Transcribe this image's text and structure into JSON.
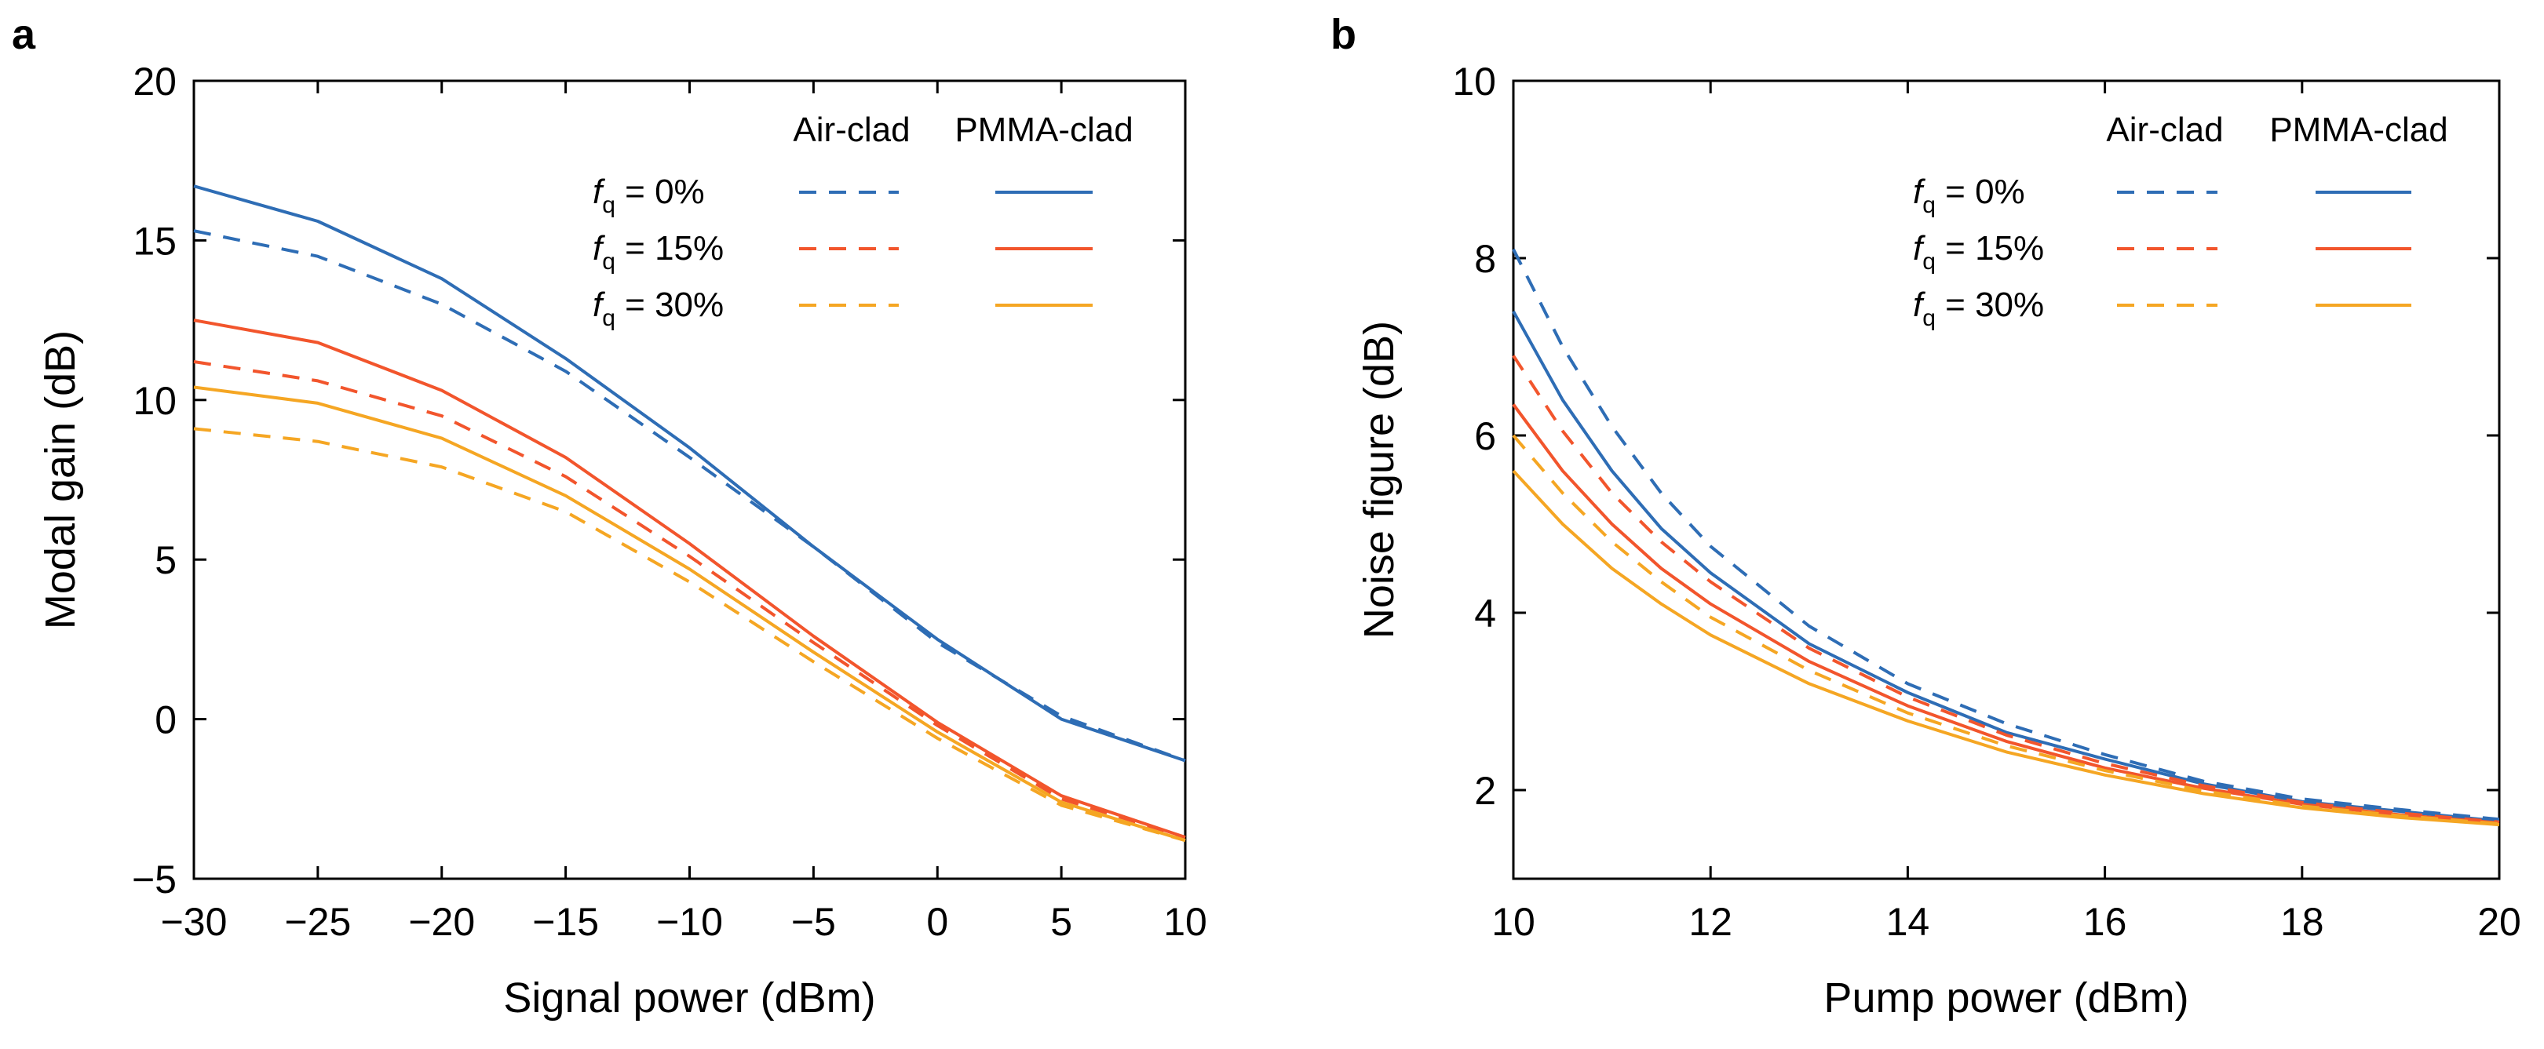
{
  "colors": {
    "fq0": "#2e6db5",
    "fq15": "#f2552c",
    "fq30": "#f5a623",
    "axis": "#000000"
  },
  "chart_data": [
    {
      "panel": "a",
      "type": "line",
      "xlabel": "Signal power (dBm)",
      "ylabel": "Modal gain (dB)",
      "xlim": [
        -30,
        10
      ],
      "ylim": [
        -5,
        20
      ],
      "xticks": [
        -30,
        -25,
        -20,
        -15,
        -10,
        -5,
        0,
        5,
        10
      ],
      "yticks": [
        -5,
        0,
        5,
        10,
        15,
        20
      ],
      "xtick_labels": [
        "−30",
        "−25",
        "−20",
        "−15",
        "−10",
        "−5",
        "0",
        "5",
        "10"
      ],
      "ytick_labels": [
        "−5",
        "0",
        "5",
        "10",
        "15",
        "20"
      ],
      "legend": {
        "position": "top-right",
        "columns": [
          "Air-clad",
          "PMMA-clad"
        ],
        "rows": [
          {
            "var": "f",
            "sub": "q",
            "label": " = 0%",
            "color_key": "fq0"
          },
          {
            "var": "f",
            "sub": "q",
            "label": " = 15%",
            "color_key": "fq15"
          },
          {
            "var": "f",
            "sub": "q",
            "label": " = 30%",
            "color_key": "fq30"
          }
        ]
      },
      "x": [
        -30,
        -25,
        -20,
        -15,
        -10,
        -5,
        0,
        5,
        10
      ],
      "series": [
        {
          "name": "fq = 0% Air-clad",
          "style": "dashed",
          "color_key": "fq0",
          "values": [
            15.3,
            14.5,
            13.0,
            10.9,
            8.2,
            5.4,
            2.4,
            0.1,
            -1.3
          ]
        },
        {
          "name": "fq = 0% PMMA-clad",
          "style": "solid",
          "color_key": "fq0",
          "values": [
            16.7,
            15.6,
            13.8,
            11.3,
            8.5,
            5.4,
            2.5,
            0.0,
            -1.3
          ]
        },
        {
          "name": "fq = 15% Air-clad",
          "style": "dashed",
          "color_key": "fq15",
          "values": [
            11.2,
            10.6,
            9.5,
            7.6,
            5.1,
            2.4,
            -0.2,
            -2.5,
            -3.7
          ]
        },
        {
          "name": "fq = 15% PMMA-clad",
          "style": "solid",
          "color_key": "fq15",
          "values": [
            12.5,
            11.8,
            10.3,
            8.2,
            5.5,
            2.6,
            -0.1,
            -2.4,
            -3.7
          ]
        },
        {
          "name": "fq = 30% Air-clad",
          "style": "dashed",
          "color_key": "fq30",
          "values": [
            9.1,
            8.7,
            7.9,
            6.5,
            4.3,
            1.8,
            -0.6,
            -2.7,
            -3.8
          ]
        },
        {
          "name": "fq = 30% PMMA-clad",
          "style": "solid",
          "color_key": "fq30",
          "values": [
            10.4,
            9.9,
            8.8,
            7.0,
            4.7,
            2.1,
            -0.4,
            -2.6,
            -3.8
          ]
        }
      ]
    },
    {
      "panel": "b",
      "type": "line",
      "xlabel": "Pump power (dBm)",
      "ylabel": "Noise figure (dB)",
      "xlim": [
        10,
        20
      ],
      "ylim": [
        1,
        10
      ],
      "xticks": [
        10,
        12,
        14,
        16,
        18,
        20
      ],
      "yticks": [
        2,
        4,
        6,
        8,
        10
      ],
      "xtick_labels": [
        "10",
        "12",
        "14",
        "16",
        "18",
        "20"
      ],
      "ytick_labels": [
        "2",
        "4",
        "6",
        "8",
        "10"
      ],
      "legend": {
        "position": "top-right",
        "columns": [
          "Air-clad",
          "PMMA-clad"
        ],
        "rows": [
          {
            "var": "f",
            "sub": "q",
            "label": " = 0%",
            "color_key": "fq0"
          },
          {
            "var": "f",
            "sub": "q",
            "label": " = 15%",
            "color_key": "fq15"
          },
          {
            "var": "f",
            "sub": "q",
            "label": " = 30%",
            "color_key": "fq30"
          }
        ]
      },
      "x": [
        10,
        10.5,
        11,
        11.5,
        12,
        13,
        14,
        15,
        16,
        17,
        18,
        19,
        20
      ],
      "series": [
        {
          "name": "fq = 0% Air-clad",
          "style": "dashed",
          "color_key": "fq0",
          "values": [
            8.1,
            7.0,
            6.1,
            5.35,
            4.75,
            3.85,
            3.2,
            2.75,
            2.4,
            2.1,
            1.9,
            1.78,
            1.67
          ]
        },
        {
          "name": "fq = 0% PMMA-clad",
          "style": "solid",
          "color_key": "fq0",
          "values": [
            7.4,
            6.4,
            5.6,
            4.95,
            4.45,
            3.65,
            3.1,
            2.65,
            2.35,
            2.07,
            1.87,
            1.76,
            1.65
          ]
        },
        {
          "name": "fq = 15% Air-clad",
          "style": "dashed",
          "color_key": "fq15",
          "values": [
            6.9,
            6.05,
            5.35,
            4.8,
            4.35,
            3.6,
            3.05,
            2.62,
            2.3,
            2.05,
            1.86,
            1.74,
            1.64
          ]
        },
        {
          "name": "fq = 15% PMMA-clad",
          "style": "solid",
          "color_key": "fq15",
          "values": [
            6.35,
            5.6,
            5.0,
            4.5,
            4.1,
            3.45,
            2.95,
            2.55,
            2.25,
            2.02,
            1.84,
            1.72,
            1.63
          ]
        },
        {
          "name": "fq = 30% Air-clad",
          "style": "dashed",
          "color_key": "fq30",
          "values": [
            6.0,
            5.35,
            4.8,
            4.35,
            3.95,
            3.35,
            2.87,
            2.5,
            2.22,
            1.99,
            1.82,
            1.71,
            1.62
          ]
        },
        {
          "name": "fq = 30% PMMA-clad",
          "style": "solid",
          "color_key": "fq30",
          "values": [
            5.6,
            5.0,
            4.5,
            4.1,
            3.75,
            3.2,
            2.78,
            2.43,
            2.17,
            1.96,
            1.8,
            1.69,
            1.61
          ]
        }
      ]
    }
  ]
}
